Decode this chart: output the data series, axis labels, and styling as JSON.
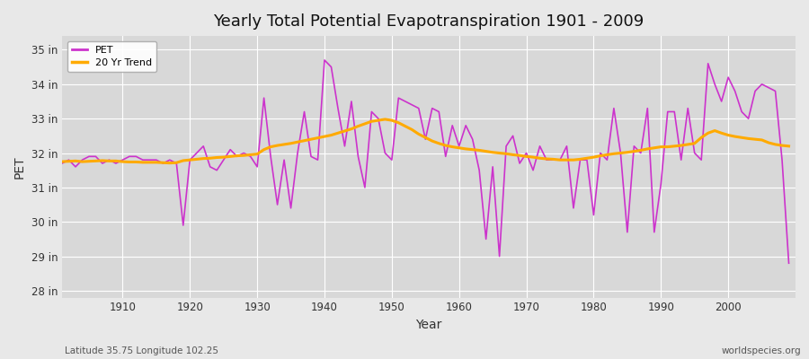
{
  "title": "Yearly Total Potential Evapotranspiration 1901 - 2009",
  "ylabel": "PET",
  "xlabel": "Year",
  "footnote_left": "Latitude 35.75 Longitude 102.25",
  "footnote_right": "worldspecies.org",
  "pet_color": "#cc33cc",
  "trend_color": "#ffaa00",
  "fig_bg_color": "#e8e8e8",
  "plot_bg_color": "#d8d8d8",
  "ylim": [
    27.8,
    35.4
  ],
  "yticks": [
    28,
    29,
    30,
    31,
    32,
    33,
    34,
    35
  ],
  "ytick_labels": [
    "28 in",
    "29 in",
    "30 in",
    "31 in",
    "32 in",
    "33 in",
    "34 in",
    "35 in"
  ],
  "years": [
    1901,
    1902,
    1903,
    1904,
    1905,
    1906,
    1907,
    1908,
    1909,
    1910,
    1911,
    1912,
    1913,
    1914,
    1915,
    1916,
    1917,
    1918,
    1919,
    1920,
    1921,
    1922,
    1923,
    1924,
    1925,
    1926,
    1927,
    1928,
    1929,
    1930,
    1931,
    1932,
    1933,
    1934,
    1935,
    1936,
    1937,
    1938,
    1939,
    1940,
    1941,
    1942,
    1943,
    1944,
    1945,
    1946,
    1947,
    1948,
    1949,
    1950,
    1951,
    1952,
    1953,
    1954,
    1955,
    1956,
    1957,
    1958,
    1959,
    1960,
    1961,
    1962,
    1963,
    1964,
    1965,
    1966,
    1967,
    1968,
    1969,
    1970,
    1971,
    1972,
    1973,
    1974,
    1975,
    1976,
    1977,
    1978,
    1979,
    1980,
    1981,
    1982,
    1983,
    1984,
    1985,
    1986,
    1987,
    1988,
    1989,
    1990,
    1991,
    1992,
    1993,
    1994,
    1995,
    1996,
    1997,
    1998,
    1999,
    2000,
    2001,
    2002,
    2003,
    2004,
    2005,
    2006,
    2007,
    2008,
    2009
  ],
  "pet_values": [
    31.7,
    31.8,
    31.6,
    31.8,
    31.9,
    31.9,
    31.7,
    31.8,
    31.7,
    31.8,
    31.9,
    31.9,
    31.8,
    31.8,
    31.8,
    31.7,
    31.8,
    31.7,
    29.9,
    31.8,
    32.0,
    32.2,
    31.6,
    31.5,
    31.8,
    32.1,
    31.9,
    32.0,
    31.9,
    31.6,
    33.6,
    31.9,
    30.5,
    31.8,
    30.4,
    32.0,
    33.2,
    31.9,
    31.8,
    34.7,
    34.5,
    33.3,
    32.2,
    33.5,
    31.9,
    31.0,
    33.2,
    33.0,
    32.0,
    31.8,
    33.6,
    33.5,
    33.4,
    33.3,
    32.4,
    33.3,
    33.2,
    31.9,
    32.8,
    32.2,
    32.8,
    32.4,
    31.5,
    29.5,
    31.6,
    29.0,
    32.2,
    32.5,
    31.7,
    32.0,
    31.5,
    32.2,
    31.8,
    31.8,
    31.8,
    32.2,
    30.4,
    31.8,
    31.8,
    30.2,
    32.0,
    31.8,
    33.3,
    32.0,
    29.7,
    32.2,
    32.0,
    33.3,
    29.7,
    31.1,
    33.2,
    33.2,
    31.8,
    33.3,
    32.0,
    31.8,
    34.6,
    34.0,
    33.5,
    34.2,
    33.8,
    33.2,
    33.0,
    33.8,
    34.0,
    33.9,
    33.8,
    31.8,
    28.8
  ],
  "trend_values": [
    31.75,
    31.76,
    31.77,
    31.75,
    31.76,
    31.77,
    31.78,
    31.77,
    31.77,
    31.75,
    31.74,
    31.74,
    31.73,
    31.73,
    31.73,
    31.72,
    31.71,
    31.72,
    31.78,
    31.8,
    31.82,
    31.84,
    31.85,
    31.87,
    31.88,
    31.9,
    31.92,
    31.93,
    31.95,
    31.97,
    32.1,
    32.18,
    32.22,
    32.25,
    32.28,
    32.32,
    32.36,
    32.4,
    32.44,
    32.48,
    32.52,
    32.58,
    32.64,
    32.7,
    32.78,
    32.85,
    32.92,
    32.95,
    32.98,
    32.95,
    32.88,
    32.78,
    32.68,
    32.55,
    32.45,
    32.35,
    32.28,
    32.22,
    32.18,
    32.15,
    32.12,
    32.1,
    32.08,
    32.05,
    32.02,
    32.0,
    31.98,
    31.95,
    31.93,
    31.9,
    31.88,
    31.85,
    31.83,
    31.82,
    31.8,
    31.8,
    31.8,
    31.82,
    31.85,
    31.88,
    31.92,
    31.95,
    31.98,
    32.0,
    32.02,
    32.05,
    32.08,
    32.12,
    32.15,
    32.18,
    32.18,
    32.2,
    32.22,
    32.25,
    32.28,
    32.45,
    32.58,
    32.65,
    32.58,
    32.52,
    32.48,
    32.45,
    32.42,
    32.4,
    32.38,
    32.3,
    32.25,
    32.22,
    32.2
  ]
}
